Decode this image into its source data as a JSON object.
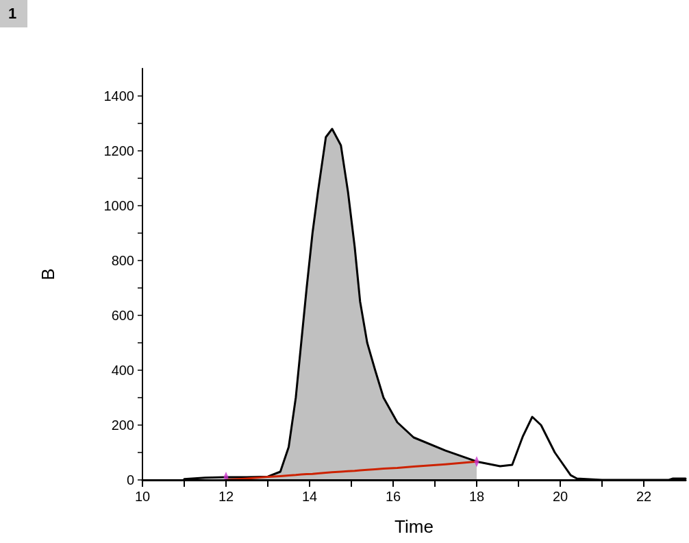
{
  "chart_data": {
    "type": "line",
    "xlabel": "Time",
    "ylabel": "B",
    "annotations": [
      "1"
    ],
    "xlim": [
      10,
      23
    ],
    "xticks": [
      10,
      {
        "value": 11,
        "label": null
      },
      12,
      {
        "value": 13,
        "label": null
      },
      14,
      {
        "value": 15,
        "label": null
      },
      16,
      {
        "value": 17,
        "label": null
      },
      18,
      {
        "value": 19,
        "label": null
      },
      20,
      {
        "value": 21,
        "label": null
      },
      22
    ],
    "ylim": [
      0,
      1500
    ],
    "yticks": [
      0,
      {
        "value": 100,
        "label": null
      },
      200,
      {
        "value": 300,
        "label": null
      },
      400,
      {
        "value": 500,
        "label": null
      },
      600,
      {
        "value": 700,
        "label": null
      },
      800,
      {
        "value": 900,
        "label": null
      },
      1000,
      {
        "value": 1100,
        "label": null
      },
      1200,
      {
        "value": 1300,
        "label": null
      },
      1400
    ],
    "grid": false,
    "marker": "none",
    "line_style": "solid",
    "series": [
      {
        "type": "area",
        "color": "#c0c0c0",
        "x": [
          12,
          12.5,
          13,
          13.3,
          13.5,
          13.67,
          13.8,
          13.93,
          14.07,
          14.2,
          14.39,
          14.54,
          14.75,
          14.92,
          15.08,
          15.21,
          15.38,
          15.57,
          15.77,
          16.1,
          16.49,
          17.25,
          18
        ],
        "values": [
          10,
          10,
          12,
          30,
          120,
          300,
          500,
          700,
          900,
          1050,
          1250,
          1280,
          1220,
          1050,
          850,
          650,
          500,
          400,
          300,
          210,
          155,
          107,
          67
        ]
      },
      {
        "color": "#000000",
        "x": [
          11,
          11.5,
          12,
          12.5,
          13,
          13.3,
          13.5,
          13.67,
          13.8,
          13.93,
          14.07,
          14.2,
          14.39,
          14.54,
          14.75,
          14.92,
          15.08,
          15.21,
          15.38,
          15.57,
          15.77,
          16.1,
          16.49,
          17.25,
          18,
          18.56,
          18.85,
          19.1,
          19.33,
          19.54,
          19.87,
          20.25,
          20.4,
          21,
          22,
          22.6,
          22.7,
          23
        ],
        "values": [
          3,
          8,
          10,
          10,
          12,
          30,
          120,
          300,
          500,
          700,
          900,
          1050,
          1250,
          1280,
          1220,
          1050,
          850,
          650,
          500,
          400,
          300,
          210,
          155,
          107,
          67,
          50,
          55,
          157,
          230,
          200,
          100,
          17,
          5,
          0,
          0,
          0,
          5,
          5
        ]
      },
      {
        "type": "line",
        "color": "#cc2200",
        "x": [
          12,
          12.5,
          13,
          13.3,
          13.5,
          13.67,
          13.8,
          13.93,
          14.07,
          14.2,
          14.39,
          14.54,
          14.75,
          14.92,
          15.08,
          15.21,
          15.38,
          15.57,
          15.77,
          16.1,
          16.49,
          17.25,
          18
        ],
        "values": [
          0,
          5,
          11,
          14,
          16,
          18,
          20,
          21,
          22,
          24,
          26,
          28,
          30,
          32,
          33,
          35,
          37,
          39,
          41,
          44,
          49,
          57,
          67
        ]
      },
      {
        "type": "scatter",
        "color": "#cc33cc",
        "marker": "diamond",
        "x": [
          12,
          18
        ],
        "values": [
          10,
          67
        ]
      }
    ]
  }
}
